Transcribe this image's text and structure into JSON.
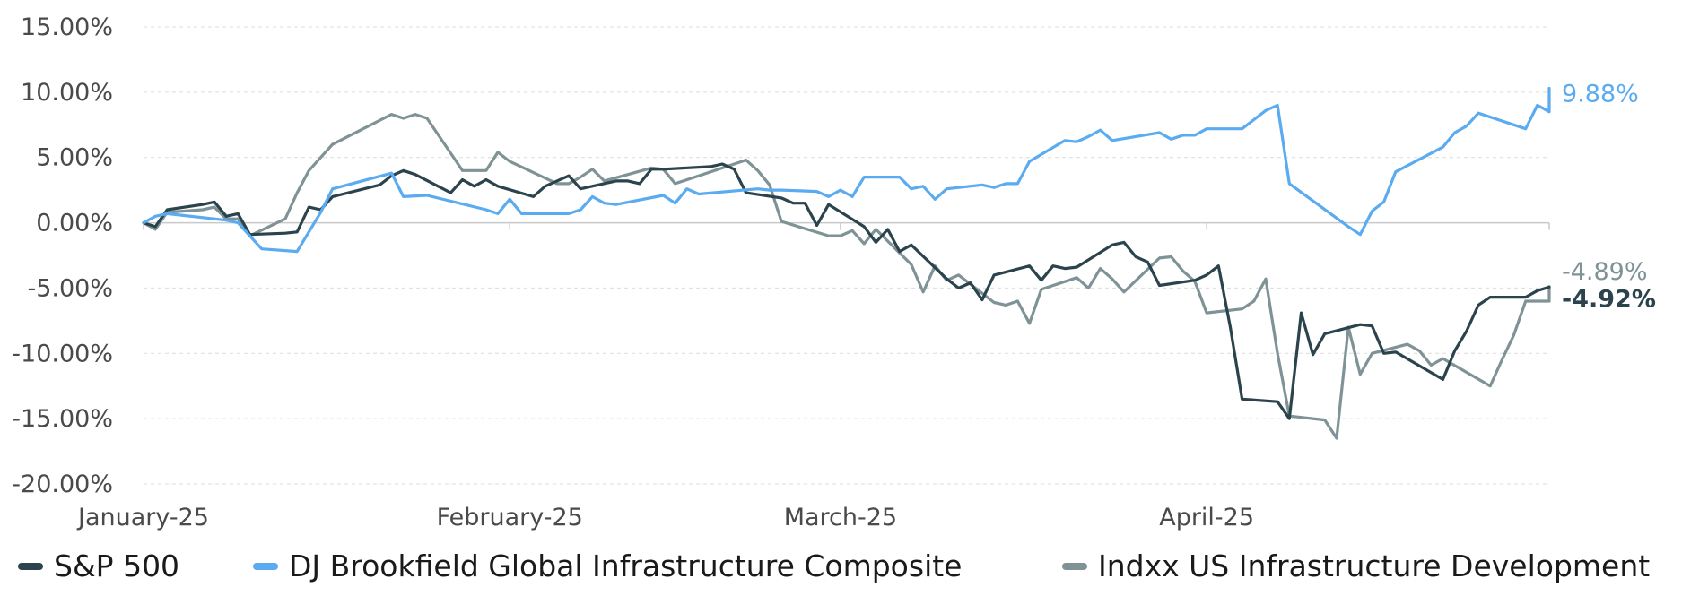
{
  "chart_data": {
    "type": "line",
    "title": "",
    "xlabel": "",
    "ylabel": "",
    "ylim": [
      -20,
      15
    ],
    "y_tick_values": [
      15,
      10,
      5,
      0,
      -5,
      -10,
      -15,
      -20
    ],
    "y_tick_labels": [
      "15.00%",
      "10.00%",
      "5.00%",
      "0.00%",
      "-5.00%",
      "-10.00%",
      "-15.00%",
      "-20.00%"
    ],
    "x_start": "2025-01-01",
    "x_end": "2025-04-30",
    "x_ticks": [
      {
        "label": "January-25",
        "date": "2025-01-01"
      },
      {
        "label": "February-25",
        "date": "2025-02-01"
      },
      {
        "label": "March-25",
        "date": "2025-03-01"
      },
      {
        "label": "April-25",
        "date": "2025-04-01"
      }
    ],
    "grid": "horizontal dashed",
    "legend_position": "bottom",
    "series": [
      {
        "name": "S&P 500",
        "color": "#2a434d",
        "end_label": "-4.92%",
        "points": [
          [
            "2025-01-01",
            0.0
          ],
          [
            "2025-01-02",
            -0.3
          ],
          [
            "2025-01-03",
            1.0
          ],
          [
            "2025-01-06",
            1.4
          ],
          [
            "2025-01-07",
            1.6
          ],
          [
            "2025-01-08",
            0.5
          ],
          [
            "2025-01-09",
            0.7
          ],
          [
            "2025-01-10",
            -0.9
          ],
          [
            "2025-01-13",
            -0.8
          ],
          [
            "2025-01-14",
            -0.7
          ],
          [
            "2025-01-15",
            1.2
          ],
          [
            "2025-01-16",
            1.0
          ],
          [
            "2025-01-17",
            2.0
          ],
          [
            "2025-01-21",
            2.9
          ],
          [
            "2025-01-22",
            3.6
          ],
          [
            "2025-01-23",
            4.0
          ],
          [
            "2025-01-24",
            3.7
          ],
          [
            "2025-01-27",
            2.3
          ],
          [
            "2025-01-28",
            3.3
          ],
          [
            "2025-01-29",
            2.8
          ],
          [
            "2025-01-30",
            3.3
          ],
          [
            "2025-01-31",
            2.8
          ],
          [
            "2025-02-03",
            2.0
          ],
          [
            "2025-02-04",
            2.8
          ],
          [
            "2025-02-05",
            3.2
          ],
          [
            "2025-02-06",
            3.6
          ],
          [
            "2025-02-07",
            2.6
          ],
          [
            "2025-02-10",
            3.2
          ],
          [
            "2025-02-11",
            3.2
          ],
          [
            "2025-02-12",
            3.0
          ],
          [
            "2025-02-13",
            4.1
          ],
          [
            "2025-02-14",
            4.1
          ],
          [
            "2025-02-18",
            4.3
          ],
          [
            "2025-02-19",
            4.5
          ],
          [
            "2025-02-20",
            4.1
          ],
          [
            "2025-02-21",
            2.3
          ],
          [
            "2025-02-24",
            1.9
          ],
          [
            "2025-02-25",
            1.5
          ],
          [
            "2025-02-26",
            1.5
          ],
          [
            "2025-02-27",
            -0.2
          ],
          [
            "2025-02-28",
            1.4
          ],
          [
            "2025-03-03",
            -0.3
          ],
          [
            "2025-03-04",
            -1.5
          ],
          [
            "2025-03-05",
            -0.5
          ],
          [
            "2025-03-06",
            -2.2
          ],
          [
            "2025-03-07",
            -1.7
          ],
          [
            "2025-03-10",
            -4.3
          ],
          [
            "2025-03-11",
            -5.0
          ],
          [
            "2025-03-12",
            -4.6
          ],
          [
            "2025-03-13",
            -5.9
          ],
          [
            "2025-03-14",
            -4.0
          ],
          [
            "2025-03-17",
            -3.3
          ],
          [
            "2025-03-18",
            -4.4
          ],
          [
            "2025-03-19",
            -3.3
          ],
          [
            "2025-03-20",
            -3.5
          ],
          [
            "2025-03-21",
            -3.4
          ],
          [
            "2025-03-24",
            -1.7
          ],
          [
            "2025-03-25",
            -1.5
          ],
          [
            "2025-03-26",
            -2.6
          ],
          [
            "2025-03-27",
            -3.0
          ],
          [
            "2025-03-28",
            -4.8
          ],
          [
            "2025-03-31",
            -4.4
          ],
          [
            "2025-04-01",
            -4.0
          ],
          [
            "2025-04-02",
            -3.3
          ],
          [
            "2025-04-03",
            -8.0
          ],
          [
            "2025-04-04",
            -13.5
          ],
          [
            "2025-04-07",
            -13.7
          ],
          [
            "2025-04-08",
            -15.0
          ],
          [
            "2025-04-09",
            -6.9
          ],
          [
            "2025-04-10",
            -10.1
          ],
          [
            "2025-04-11",
            -8.5
          ],
          [
            "2025-04-14",
            -7.8
          ],
          [
            "2025-04-15",
            -7.9
          ],
          [
            "2025-04-16",
            -10.0
          ],
          [
            "2025-04-17",
            -9.9
          ],
          [
            "2025-04-21",
            -12.0
          ],
          [
            "2025-04-22",
            -9.8
          ],
          [
            "2025-04-23",
            -8.3
          ],
          [
            "2025-04-24",
            -6.3
          ],
          [
            "2025-04-25",
            -5.7
          ],
          [
            "2025-04-28",
            -5.7
          ],
          [
            "2025-04-29",
            -5.2
          ],
          [
            "2025-04-30",
            -4.92
          ]
        ]
      },
      {
        "name": "DJ Brookfield Global Infrastructure Composite",
        "color": "#5aabf0",
        "end_label": "9.88%",
        "points": [
          [
            "2025-01-01",
            0.0
          ],
          [
            "2025-01-02",
            0.5
          ],
          [
            "2025-01-03",
            0.7
          ],
          [
            "2025-01-08",
            0.2
          ],
          [
            "2025-01-09",
            0.0
          ],
          [
            "2025-01-11",
            -2.0
          ],
          [
            "2025-01-14",
            -2.2
          ],
          [
            "2025-01-16",
            0.8
          ],
          [
            "2025-01-17",
            2.6
          ],
          [
            "2025-01-22",
            3.8
          ],
          [
            "2025-01-23",
            2.0
          ],
          [
            "2025-01-25",
            2.1
          ],
          [
            "2025-01-30",
            1.0
          ],
          [
            "2025-01-31",
            0.7
          ],
          [
            "2025-02-01",
            1.8
          ],
          [
            "2025-02-02",
            0.7
          ],
          [
            "2025-02-06",
            0.7
          ],
          [
            "2025-02-07",
            1.0
          ],
          [
            "2025-02-08",
            2.0
          ],
          [
            "2025-02-09",
            1.5
          ],
          [
            "2025-02-10",
            1.4
          ],
          [
            "2025-02-14",
            2.1
          ],
          [
            "2025-02-15",
            1.5
          ],
          [
            "2025-02-16",
            2.6
          ],
          [
            "2025-02-17",
            2.2
          ],
          [
            "2025-02-22",
            2.6
          ],
          [
            "2025-02-23",
            2.5
          ],
          [
            "2025-02-24",
            2.5
          ],
          [
            "2025-02-27",
            2.4
          ],
          [
            "2025-02-28",
            2.0
          ],
          [
            "2025-03-01",
            2.5
          ],
          [
            "2025-03-02",
            2.0
          ],
          [
            "2025-03-03",
            3.5
          ],
          [
            "2025-03-06",
            3.5
          ],
          [
            "2025-03-07",
            2.6
          ],
          [
            "2025-03-08",
            2.8
          ],
          [
            "2025-03-09",
            1.8
          ],
          [
            "2025-03-10",
            2.6
          ],
          [
            "2025-03-13",
            2.9
          ],
          [
            "2025-03-14",
            2.7
          ],
          [
            "2025-03-15",
            3.0
          ],
          [
            "2025-03-16",
            3.0
          ],
          [
            "2025-03-17",
            4.7
          ],
          [
            "2025-03-20",
            6.3
          ],
          [
            "2025-03-21",
            6.2
          ],
          [
            "2025-03-22",
            6.6
          ],
          [
            "2025-03-23",
            7.1
          ],
          [
            "2025-03-24",
            6.3
          ],
          [
            "2025-03-28",
            6.9
          ],
          [
            "2025-03-29",
            6.4
          ],
          [
            "2025-03-30",
            6.7
          ],
          [
            "2025-03-31",
            6.7
          ],
          [
            "2025-04-01",
            7.2
          ],
          [
            "2025-04-04",
            7.2
          ],
          [
            "2025-04-06",
            8.6
          ],
          [
            "2025-04-07",
            9.0
          ],
          [
            "2025-04-08",
            3.0
          ],
          [
            "2025-04-13",
            -0.3
          ],
          [
            "2025-04-14",
            -0.9
          ],
          [
            "2025-04-15",
            0.9
          ],
          [
            "2025-04-16",
            1.6
          ],
          [
            "2025-04-17",
            3.9
          ],
          [
            "2025-04-21",
            5.8
          ],
          [
            "2025-04-22",
            6.9
          ],
          [
            "2025-04-23",
            7.4
          ],
          [
            "2025-04-24",
            8.4
          ],
          [
            "2025-04-28",
            7.2
          ],
          [
            "2025-04-29",
            9.0
          ],
          [
            "2025-04-30",
            8.5
          ],
          [
            "2025-05-01",
            9.2
          ],
          [
            "2025-05-02",
            9.1
          ],
          [
            "2025-05-05",
            9.8
          ],
          [
            "2025-05-06",
            10.3
          ],
          [
            "2025-05-07",
            9.88
          ]
        ]
      },
      {
        "name": "Indxx US Infrastructure Development",
        "color": "#7f9295",
        "end_label": "-4.89%",
        "points": [
          [
            "2025-01-01",
            0.0
          ],
          [
            "2025-01-02",
            -0.5
          ],
          [
            "2025-01-03",
            0.8
          ],
          [
            "2025-01-06",
            1.0
          ],
          [
            "2025-01-07",
            1.2
          ],
          [
            "2025-01-08",
            0.3
          ],
          [
            "2025-01-09",
            0.3
          ],
          [
            "2025-01-10",
            -1.0
          ],
          [
            "2025-01-13",
            0.3
          ],
          [
            "2025-01-14",
            2.3
          ],
          [
            "2025-01-15",
            4.0
          ],
          [
            "2025-01-16",
            5.0
          ],
          [
            "2025-01-17",
            6.0
          ],
          [
            "2025-01-22",
            8.3
          ],
          [
            "2025-01-23",
            8.0
          ],
          [
            "2025-01-24",
            8.3
          ],
          [
            "2025-01-25",
            8.0
          ],
          [
            "2025-01-28",
            4.0
          ],
          [
            "2025-01-29",
            4.0
          ],
          [
            "2025-01-30",
            4.0
          ],
          [
            "2025-01-31",
            5.4
          ],
          [
            "2025-02-01",
            4.7
          ],
          [
            "2025-02-05",
            3.0
          ],
          [
            "2025-02-06",
            3.0
          ],
          [
            "2025-02-07",
            3.5
          ],
          [
            "2025-02-08",
            4.1
          ],
          [
            "2025-02-09",
            3.2
          ],
          [
            "2025-02-13",
            4.2
          ],
          [
            "2025-02-14",
            4.1
          ],
          [
            "2025-02-15",
            3.0
          ],
          [
            "2025-02-21",
            4.8
          ],
          [
            "2025-02-22",
            4.0
          ],
          [
            "2025-02-23",
            2.9
          ],
          [
            "2025-02-24",
            0.1
          ],
          [
            "2025-02-28",
            -1.0
          ],
          [
            "2025-03-01",
            -1.0
          ],
          [
            "2025-03-02",
            -0.6
          ],
          [
            "2025-03-03",
            -1.6
          ],
          [
            "2025-03-04",
            -0.5
          ],
          [
            "2025-03-07",
            -3.2
          ],
          [
            "2025-03-08",
            -5.3
          ],
          [
            "2025-03-09",
            -3.3
          ],
          [
            "2025-03-10",
            -4.4
          ],
          [
            "2025-03-11",
            -4.0
          ],
          [
            "2025-03-14",
            -6.1
          ],
          [
            "2025-03-15",
            -6.3
          ],
          [
            "2025-03-16",
            -6.0
          ],
          [
            "2025-03-17",
            -7.7
          ],
          [
            "2025-03-18",
            -5.1
          ],
          [
            "2025-03-21",
            -4.2
          ],
          [
            "2025-03-22",
            -5.0
          ],
          [
            "2025-03-23",
            -3.5
          ],
          [
            "2025-03-24",
            -4.3
          ],
          [
            "2025-03-25",
            -5.3
          ],
          [
            "2025-03-28",
            -2.7
          ],
          [
            "2025-03-29",
            -2.6
          ],
          [
            "2025-03-30",
            -3.7
          ],
          [
            "2025-03-31",
            -4.5
          ],
          [
            "2025-04-01",
            -6.9
          ],
          [
            "2025-04-04",
            -6.6
          ],
          [
            "2025-04-05",
            -6.0
          ],
          [
            "2025-04-06",
            -4.3
          ],
          [
            "2025-04-07",
            -10.0
          ],
          [
            "2025-04-08",
            -14.8
          ],
          [
            "2025-04-11",
            -15.1
          ],
          [
            "2025-04-12",
            -16.5
          ],
          [
            "2025-04-13",
            -8.0
          ],
          [
            "2025-04-14",
            -11.6
          ],
          [
            "2025-04-15",
            -10.0
          ],
          [
            "2025-04-18",
            -9.3
          ],
          [
            "2025-04-19",
            -9.8
          ],
          [
            "2025-04-20",
            -10.9
          ],
          [
            "2025-04-21",
            -10.4
          ],
          [
            "2025-04-25",
            -12.5
          ],
          [
            "2025-04-26",
            -10.5
          ],
          [
            "2025-04-27",
            -8.6
          ],
          [
            "2025-04-28",
            -6.0
          ],
          [
            "2025-05-02",
            -6.0
          ],
          [
            "2025-05-05",
            -5.3
          ],
          [
            "2025-05-06",
            -4.89
          ]
        ]
      }
    ]
  },
  "legend": {
    "items": [
      {
        "label": "S&P 500",
        "color": "#2a434d"
      },
      {
        "label": "DJ Brookfield Global Infrastructure Composite",
        "color": "#5aabf0"
      },
      {
        "label": "Indxx US Infrastructure Development",
        "color": "#7f9295"
      }
    ]
  }
}
